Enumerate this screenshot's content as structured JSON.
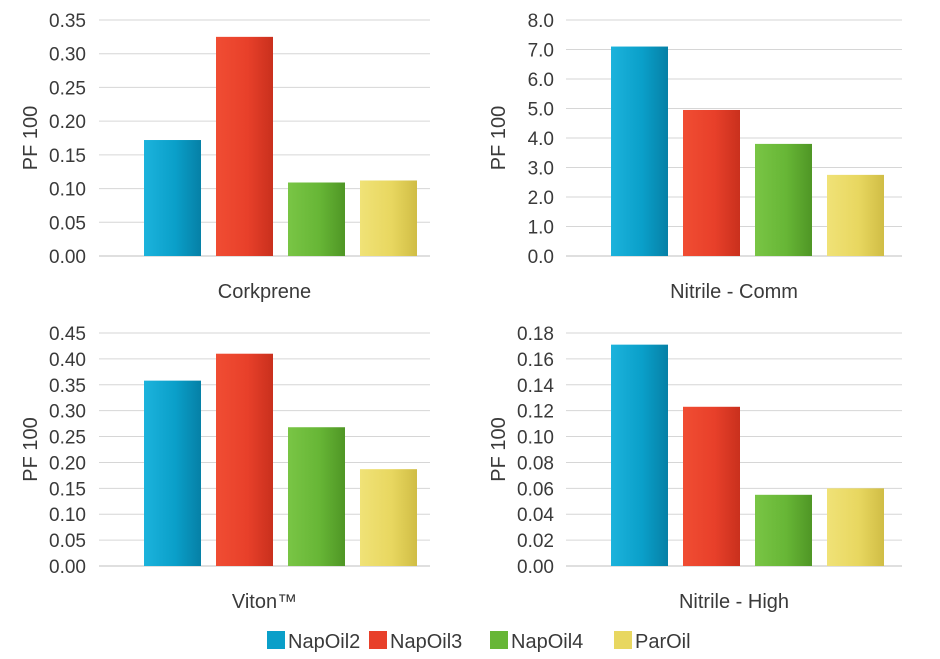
{
  "chart_data": [
    {
      "type": "bar",
      "title": "Corkprene",
      "ylabel": "PF 100",
      "ylim": [
        0,
        0.35
      ],
      "yticks": [
        "0.00",
        "0.05",
        "0.10",
        "0.15",
        "0.20",
        "0.25",
        "0.30",
        "0.35"
      ],
      "grid": true,
      "series": [
        {
          "name": "NapOil2",
          "values": [
            0.172
          ]
        },
        {
          "name": "NapOil3",
          "values": [
            0.325
          ]
        },
        {
          "name": "NapOil4",
          "values": [
            0.109
          ]
        },
        {
          "name": "ParOil",
          "values": [
            0.112
          ]
        }
      ]
    },
    {
      "type": "bar",
      "title": "Nitrile - Comm",
      "ylabel": "PF 100",
      "ylim": [
        0,
        8
      ],
      "yticks": [
        "0.0",
        "1.0",
        "2.0",
        "3.0",
        "4.0",
        "5.0",
        "6.0",
        "7.0",
        "8.0"
      ],
      "grid": true,
      "series": [
        {
          "name": "NapOil2",
          "values": [
            7.1
          ]
        },
        {
          "name": "NapOil3",
          "values": [
            4.95
          ]
        },
        {
          "name": "NapOil4",
          "values": [
            3.8
          ]
        },
        {
          "name": "ParOil",
          "values": [
            2.75
          ]
        }
      ]
    },
    {
      "type": "bar",
      "title": "Viton™",
      "ylabel": "PF 100",
      "ylim": [
        0,
        0.45
      ],
      "yticks": [
        "0.00",
        "0.05",
        "0.10",
        "0.15",
        "0.20",
        "0.25",
        "0.30",
        "0.35",
        "0.40",
        "0.45"
      ],
      "grid": true,
      "series": [
        {
          "name": "NapOil2",
          "values": [
            0.358
          ]
        },
        {
          "name": "NapOil3",
          "values": [
            0.41
          ]
        },
        {
          "name": "NapOil4",
          "values": [
            0.268
          ]
        },
        {
          "name": "ParOil",
          "values": [
            0.187
          ]
        }
      ]
    },
    {
      "type": "bar",
      "title": "Nitrile - High",
      "ylabel": "PF 100",
      "ylim": [
        0,
        0.18
      ],
      "yticks": [
        "0.00",
        "0.02",
        "0.04",
        "0.06",
        "0.08",
        "0.10",
        "0.12",
        "0.14",
        "0.16",
        "0.18"
      ],
      "grid": true,
      "series": [
        {
          "name": "NapOil2",
          "values": [
            0.171
          ]
        },
        {
          "name": "NapOil3",
          "values": [
            0.123
          ]
        },
        {
          "name": "NapOil4",
          "values": [
            0.055
          ]
        },
        {
          "name": "ParOil",
          "values": [
            0.06
          ]
        }
      ]
    }
  ],
  "legend": {
    "placement": "bottom",
    "items": [
      {
        "label": "NapOil2",
        "color": "#0a9fc9"
      },
      {
        "label": "NapOil3",
        "color": "#e8402a"
      },
      {
        "label": "NapOil4",
        "color": "#67b636"
      },
      {
        "label": "ParOil",
        "color": "#e8d760"
      }
    ]
  }
}
